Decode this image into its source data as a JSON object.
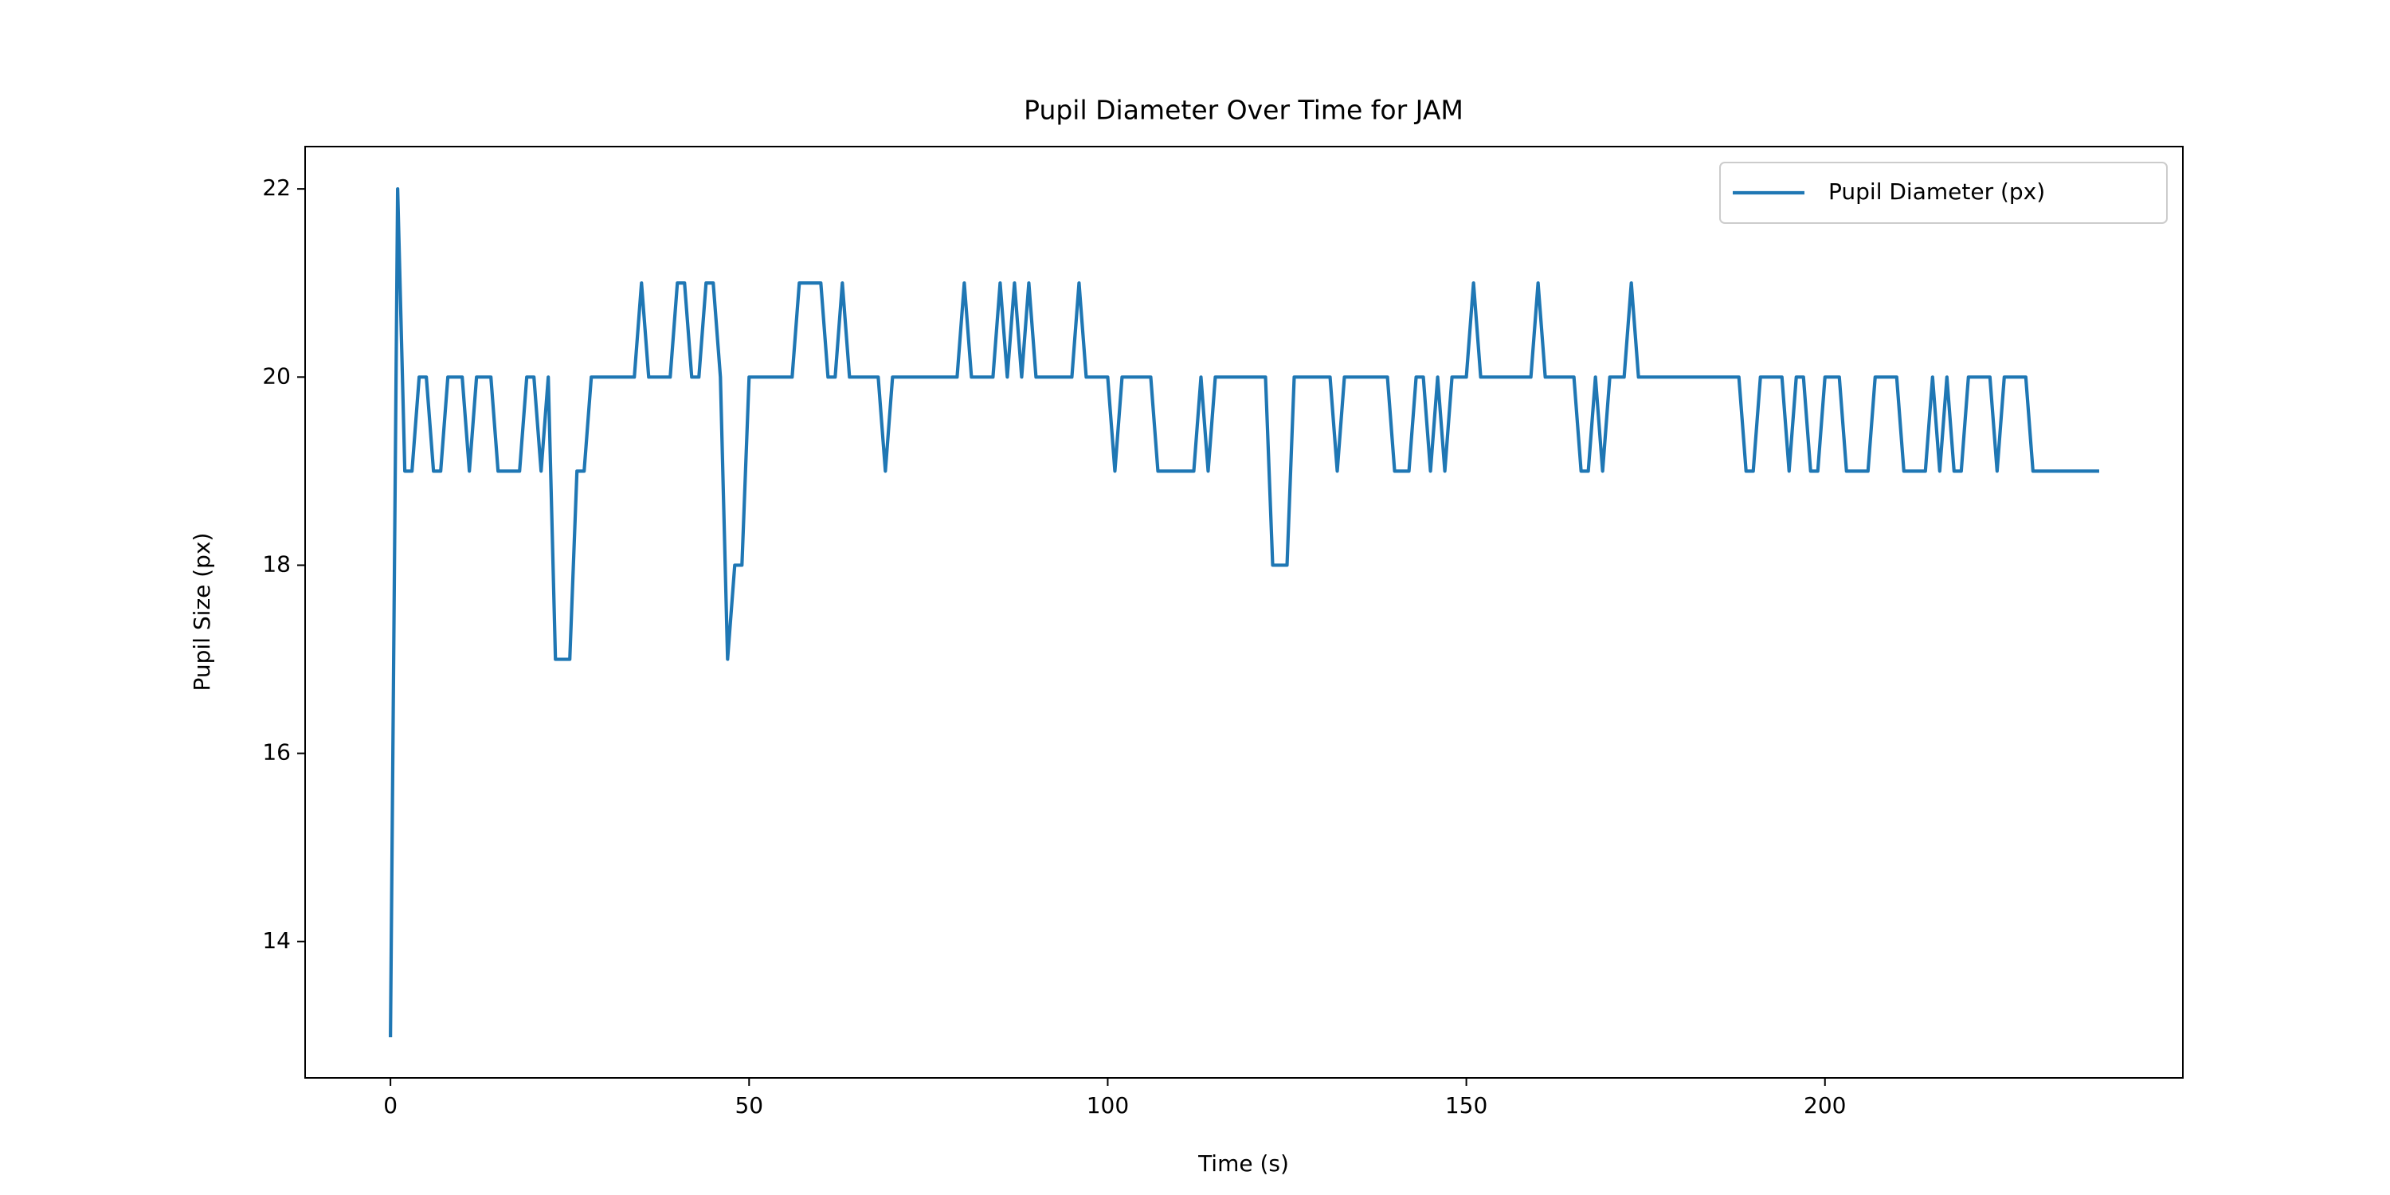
{
  "chart_data": {
    "type": "line",
    "title": "Pupil Diameter Over Time for JAM",
    "xlabel": "Time (s)",
    "ylabel": "Pupil Size (px)",
    "x": [
      0,
      1,
      2,
      3,
      4,
      5,
      6,
      7,
      8,
      9,
      10,
      11,
      12,
      13,
      14,
      15,
      16,
      17,
      18,
      19,
      20,
      21,
      22,
      23,
      24,
      25,
      26,
      27,
      28,
      29,
      30,
      31,
      32,
      33,
      34,
      35,
      36,
      37,
      38,
      39,
      40,
      41,
      42,
      43,
      44,
      45,
      46,
      47,
      48,
      49,
      50,
      51,
      52,
      53,
      54,
      55,
      56,
      57,
      58,
      59,
      60,
      61,
      62,
      63,
      64,
      65,
      66,
      67,
      68,
      69,
      70,
      71,
      72,
      73,
      74,
      75,
      76,
      77,
      78,
      79,
      80,
      81,
      82,
      83,
      84,
      85,
      86,
      87,
      88,
      89,
      90,
      91,
      92,
      93,
      94,
      95,
      96,
      97,
      98,
      99,
      100,
      101,
      102,
      103,
      104,
      105,
      106,
      107,
      108,
      109,
      110,
      111,
      112,
      113,
      114,
      115,
      116,
      117,
      118,
      119,
      120,
      121,
      122,
      123,
      124,
      125,
      126,
      127,
      128,
      129,
      130,
      131,
      132,
      133,
      134,
      135,
      136,
      137,
      138,
      139,
      140,
      141,
      142,
      143,
      144,
      145,
      146,
      147,
      148,
      149,
      150,
      151,
      152,
      153,
      154,
      155,
      156,
      157,
      158,
      159,
      160,
      161,
      162,
      163,
      164,
      165,
      166,
      167,
      168,
      169,
      170,
      171,
      172,
      173,
      174,
      175,
      176,
      177,
      178,
      179,
      180,
      181,
      182,
      183,
      184,
      185,
      186,
      187,
      188,
      189,
      190,
      191,
      192,
      193,
      194,
      195,
      196,
      197,
      198,
      199,
      200,
      201,
      202,
      203,
      204,
      205,
      206,
      207,
      208,
      209,
      210,
      211,
      212,
      213,
      214,
      215,
      216,
      217,
      218,
      219,
      220,
      221,
      222,
      223,
      224,
      225,
      226,
      227,
      228,
      229,
      230,
      231,
      232,
      233,
      234,
      235,
      236,
      237,
      238
    ],
    "series": [
      {
        "name": "Pupil Diameter (px)",
        "color": "#1f77b4",
        "values": [
          13,
          22,
          19,
          19,
          20,
          20,
          19,
          19,
          20,
          20,
          20,
          19,
          20,
          20,
          20,
          19,
          19,
          19,
          19,
          20,
          20,
          19,
          20,
          17,
          17,
          17,
          19,
          19,
          20,
          20,
          20,
          20,
          20,
          20,
          20,
          21,
          20,
          20,
          20,
          20,
          21,
          21,
          20,
          20,
          21,
          21,
          20,
          17,
          18,
          18,
          20,
          20,
          20,
          20,
          20,
          20,
          20,
          21,
          21,
          21,
          21,
          20,
          20,
          21,
          20,
          20,
          20,
          20,
          20,
          19,
          20,
          20,
          20,
          20,
          20,
          20,
          20,
          20,
          20,
          20,
          21,
          20,
          20,
          20,
          20,
          21,
          20,
          21,
          20,
          21,
          20,
          20,
          20,
          20,
          20,
          20,
          21,
          20,
          20,
          20,
          20,
          19,
          20,
          20,
          20,
          20,
          20,
          19,
          19,
          19,
          19,
          19,
          19,
          20,
          19,
          20,
          20,
          20,
          20,
          20,
          20,
          20,
          20,
          18,
          18,
          18,
          20,
          20,
          20,
          20,
          20,
          20,
          19,
          20,
          20,
          20,
          20,
          20,
          20,
          20,
          19,
          19,
          19,
          20,
          20,
          19,
          20,
          19,
          20,
          20,
          20,
          21,
          20,
          20,
          20,
          20,
          20,
          20,
          20,
          20,
          21,
          20,
          20,
          20,
          20,
          20,
          19,
          19,
          20,
          19,
          20,
          20,
          20,
          21,
          20,
          20,
          20,
          20,
          20,
          20,
          20,
          20,
          20,
          20,
          20,
          20,
          20,
          20,
          20,
          19,
          19,
          20,
          20,
          20,
          20,
          19,
          20,
          20,
          19,
          19,
          20,
          20,
          20,
          19,
          19,
          19,
          19,
          20,
          20,
          20,
          20,
          19,
          19,
          19,
          19,
          20,
          19,
          20,
          19,
          19,
          20,
          20,
          20,
          20,
          19,
          20,
          20,
          20,
          20,
          19,
          19,
          19,
          19,
          19,
          19,
          19,
          19,
          19,
          19
        ]
      }
    ],
    "xlim": [
      -11.9,
      249.9
    ],
    "ylim": [
      12.55,
      22.45
    ],
    "xticks": [
      0,
      50,
      100,
      150,
      200
    ],
    "yticks": [
      14,
      16,
      18,
      20,
      22
    ],
    "legend": "upper right"
  }
}
